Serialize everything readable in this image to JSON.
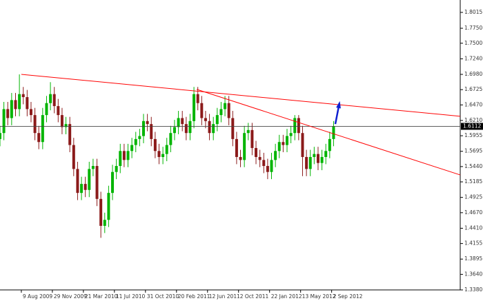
{
  "chart_data": {
    "type": "candlestick",
    "x": [
      -11,
      -9,
      -7,
      -5,
      -3,
      -1,
      1,
      3,
      5,
      7,
      9,
      11,
      13,
      15,
      17,
      19,
      21,
      23,
      25,
      27,
      29,
      31,
      33,
      35,
      37,
      39,
      41,
      43,
      45,
      47,
      49,
      51,
      53,
      55,
      57,
      59,
      61,
      63,
      65,
      67,
      69,
      71,
      73,
      75,
      77,
      79,
      81,
      83,
      85,
      87,
      89,
      91,
      93,
      95,
      97,
      99,
      101,
      103,
      105,
      107,
      109,
      111,
      113,
      115,
      117,
      119,
      121,
      123,
      125,
      127,
      129,
      131,
      133,
      135,
      137,
      139,
      141,
      143,
      145,
      147,
      149,
      151,
      153,
      155,
      157,
      159,
      161
    ],
    "open": [
      1.59,
      1.6,
      1.64,
      1.625,
      1.655,
      1.64,
      1.665,
      1.66,
      1.64,
      1.63,
      1.6,
      1.585,
      1.63,
      1.65,
      1.665,
      1.645,
      1.63,
      1.61,
      1.615,
      1.58,
      1.54,
      1.5,
      1.515,
      1.505,
      1.54,
      1.545,
      1.49,
      1.445,
      1.455,
      1.5,
      1.535,
      1.545,
      1.57,
      1.555,
      1.57,
      1.58,
      1.59,
      1.595,
      1.62,
      1.615,
      1.59,
      1.57,
      1.56,
      1.565,
      1.58,
      1.6,
      1.61,
      1.625,
      1.615,
      1.6,
      1.62,
      1.665,
      1.65,
      1.625,
      1.62,
      1.6,
      1.615,
      1.63,
      1.64,
      1.65,
      1.625,
      1.59,
      1.56,
      1.555,
      1.6,
      1.605,
      1.575,
      1.56,
      1.555,
      1.545,
      1.535,
      1.555,
      1.57,
      1.585,
      1.58,
      1.595,
      1.6,
      1.625,
      1.6,
      1.56,
      1.54,
      1.56,
      1.565,
      1.55,
      1.56,
      1.57,
      1.59
    ],
    "high": [
      1.612,
      1.652,
      1.652,
      1.667,
      1.667,
      1.698,
      1.677,
      1.672,
      1.652,
      1.642,
      1.612,
      1.642,
      1.662,
      1.685,
      1.677,
      1.657,
      1.642,
      1.627,
      1.627,
      1.592,
      1.552,
      1.527,
      1.527,
      1.552,
      1.557,
      1.557,
      1.502,
      1.467,
      1.512,
      1.547,
      1.557,
      1.582,
      1.582,
      1.582,
      1.592,
      1.602,
      1.607,
      1.632,
      1.632,
      1.627,
      1.602,
      1.582,
      1.577,
      1.592,
      1.612,
      1.622,
      1.637,
      1.637,
      1.627,
      1.632,
      1.677,
      1.677,
      1.662,
      1.637,
      1.632,
      1.627,
      1.642,
      1.652,
      1.662,
      1.662,
      1.637,
      1.602,
      1.572,
      1.612,
      1.617,
      1.617,
      1.587,
      1.572,
      1.567,
      1.557,
      1.567,
      1.582,
      1.597,
      1.597,
      1.607,
      1.612,
      1.63,
      1.63,
      1.612,
      1.572,
      1.572,
      1.577,
      1.577,
      1.572,
      1.582,
      1.602,
      1.62
    ],
    "low": [
      1.578,
      1.588,
      1.613,
      1.613,
      1.628,
      1.628,
      1.648,
      1.628,
      1.618,
      1.588,
      1.573,
      1.573,
      1.618,
      1.638,
      1.633,
      1.618,
      1.598,
      1.598,
      1.568,
      1.528,
      1.488,
      1.488,
      1.493,
      1.493,
      1.528,
      1.478,
      1.425,
      1.433,
      1.443,
      1.488,
      1.523,
      1.533,
      1.543,
      1.543,
      1.558,
      1.568,
      1.578,
      1.583,
      1.603,
      1.578,
      1.558,
      1.548,
      1.548,
      1.553,
      1.568,
      1.588,
      1.598,
      1.603,
      1.588,
      1.588,
      1.608,
      1.638,
      1.613,
      1.608,
      1.588,
      1.588,
      1.603,
      1.618,
      1.628,
      1.613,
      1.578,
      1.548,
      1.543,
      1.543,
      1.588,
      1.563,
      1.548,
      1.543,
      1.533,
      1.523,
      1.523,
      1.543,
      1.558,
      1.568,
      1.568,
      1.583,
      1.588,
      1.588,
      1.528,
      1.528,
      1.528,
      1.548,
      1.538,
      1.538,
      1.548,
      1.558,
      1.578
    ],
    "close": [
      1.6,
      1.64,
      1.625,
      1.655,
      1.64,
      1.665,
      1.66,
      1.64,
      1.63,
      1.6,
      1.585,
      1.63,
      1.65,
      1.665,
      1.645,
      1.63,
      1.61,
      1.615,
      1.58,
      1.54,
      1.5,
      1.515,
      1.505,
      1.54,
      1.545,
      1.49,
      1.445,
      1.455,
      1.5,
      1.535,
      1.545,
      1.57,
      1.555,
      1.57,
      1.58,
      1.59,
      1.595,
      1.62,
      1.615,
      1.59,
      1.57,
      1.56,
      1.565,
      1.58,
      1.6,
      1.61,
      1.625,
      1.615,
      1.6,
      1.62,
      1.665,
      1.65,
      1.625,
      1.62,
      1.6,
      1.615,
      1.63,
      1.64,
      1.65,
      1.625,
      1.59,
      1.56,
      1.555,
      1.6,
      1.605,
      1.575,
      1.56,
      1.555,
      1.545,
      1.535,
      1.555,
      1.57,
      1.585,
      1.58,
      1.595,
      1.6,
      1.625,
      1.6,
      1.56,
      1.54,
      1.56,
      1.565,
      1.55,
      1.56,
      1.57,
      1.59,
      1.611
    ],
    "up_color": "#00b400",
    "down_color": "#8b1a1a",
    "xlim": [
      -11,
      226.3
    ],
    "xticks": [
      {
        "value": 0,
        "label": "9 Aug 2009"
      },
      {
        "value": 16,
        "label": "29 Nov 2009"
      },
      {
        "value": 32,
        "label": "21 Mar 2010"
      },
      {
        "value": 48,
        "label": "11 Jul 2010"
      },
      {
        "value": 64,
        "label": "31 Oct 2010"
      },
      {
        "value": 80,
        "label": "20 Feb 2011"
      },
      {
        "value": 96,
        "label": "12 Jun 2011"
      },
      {
        "value": 112,
        "label": "2 Oct 2011"
      },
      {
        "value": 128,
        "label": "22 Jan 2012"
      },
      {
        "value": 144,
        "label": "13 May 2012"
      },
      {
        "value": 160,
        "label": "2 Sep 2012"
      }
    ],
    "ylim": [
      1.338,
      1.8222
    ],
    "yticks": [
      1.8015,
      {
        "value": 1.775,
        "label": "1.7750"
      },
      {
        "value": 1.75,
        "label": "1.7500"
      },
      {
        "value": 1.724,
        "label": "1.7240"
      },
      {
        "value": 1.698,
        "label": "1.6980"
      },
      1.6725,
      {
        "value": 1.647,
        "label": "1.6470"
      },
      {
        "value": 1.621,
        "label": "1.6210"
      },
      1.5955,
      1.5695,
      {
        "value": 1.544,
        "label": "1.5440"
      },
      1.5185,
      1.4925,
      {
        "value": 1.467,
        "label": "1.4670"
      },
      {
        "value": 1.441,
        "label": "1.4410"
      },
      1.4155,
      1.3895,
      {
        "value": 1.364,
        "label": "1.3640"
      },
      {
        "value": 1.338,
        "label": "1.3380"
      }
    ],
    "current_price": 1.6112,
    "trendlines": [
      {
        "x": [
          0,
          226.3
        ],
        "y": [
          1.698,
          1.628
        ],
        "color": "#ff0000"
      },
      {
        "x": [
          90.4,
          226.3
        ],
        "y": [
          1.673,
          1.53
        ],
        "color": "#ff0000"
      }
    ],
    "arrow": {
      "x": [
        161.9,
        164.0
      ],
      "y": [
        1.615,
        1.65
      ],
      "color": "#1020d0"
    }
  }
}
